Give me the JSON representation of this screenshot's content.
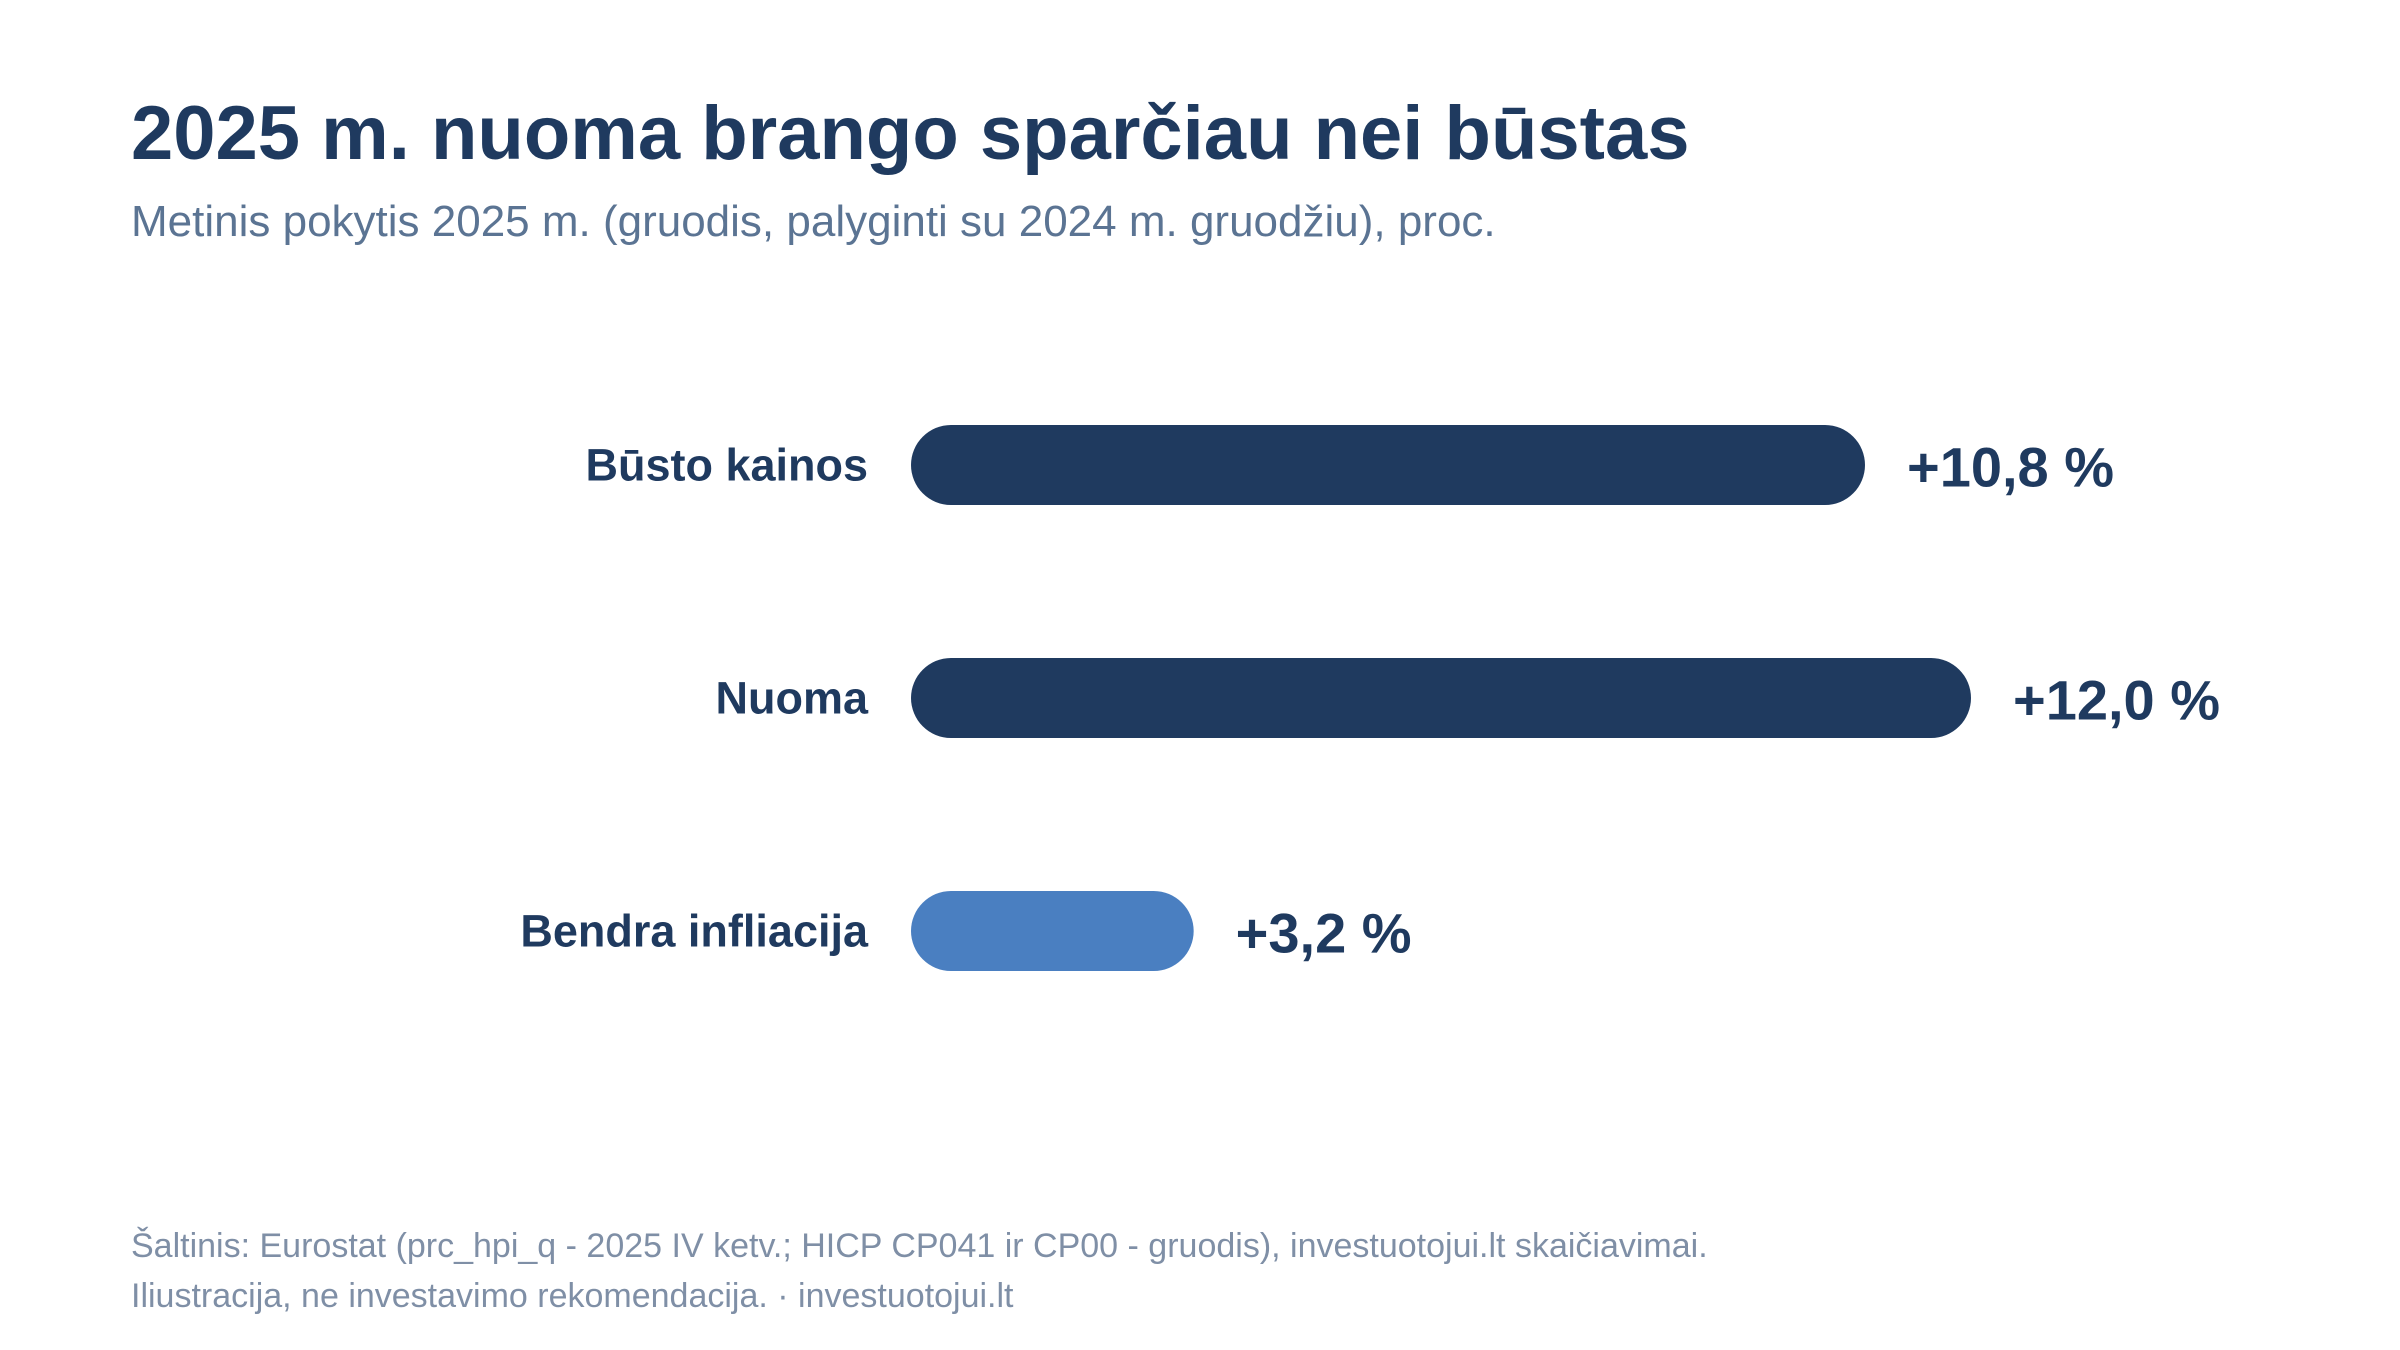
{
  "header": {
    "title": "2025 m. nuoma brango sparčiau nei būstas",
    "subtitle": "Metinis pokytis 2025 m. (gruodis, palyginti su 2024 m. gruodžiu), proc."
  },
  "chart_data": {
    "type": "bar",
    "orientation": "horizontal",
    "categories": [
      "Būsto kainos",
      "Nuoma",
      "Bendra infliacija"
    ],
    "values": [
      10.8,
      12.0,
      3.2
    ],
    "value_labels": [
      "+10,8 %",
      "+12,0 %",
      "+3,2 %"
    ],
    "bar_colors": [
      "#1f3a5f",
      "#1f3a5f",
      "#4a7fc1"
    ],
    "label_color": "#1f3a5f",
    "xlim": [
      0,
      12.0
    ],
    "grid": false,
    "legend": "none"
  },
  "footer": {
    "source": "Šaltinis: Eurostat (prc_hpi_q - 2025 IV ketv.; HICP CP041 ir CP00 - gruodis), investuotojui.lt skaičiavimai.",
    "note": "Iliustracija, ne investavimo rekomendacija. · investuotojui.lt"
  }
}
